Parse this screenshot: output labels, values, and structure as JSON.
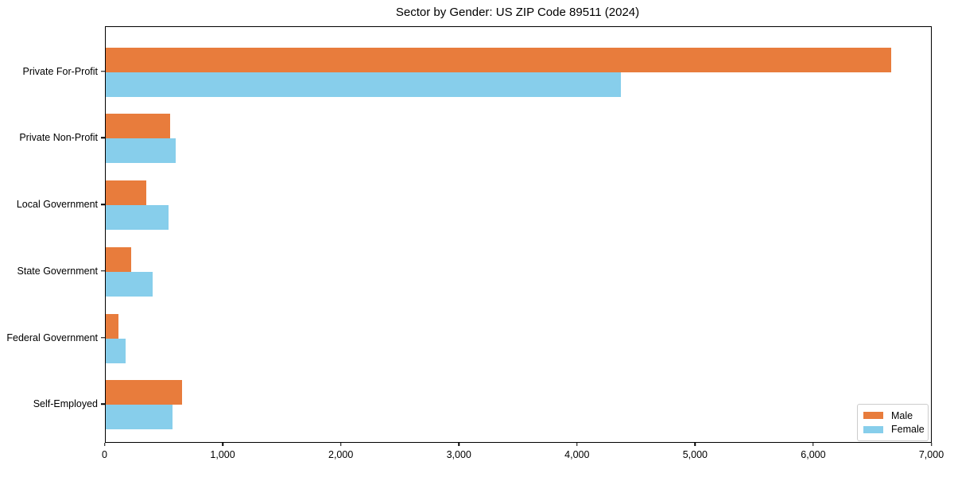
{
  "chart_data": {
    "type": "bar",
    "orientation": "horizontal",
    "title": "Sector by Gender: US ZIP Code 89511 (2024)",
    "xlabel": "",
    "ylabel": "",
    "categories": [
      "Private For-Profit",
      "Private Non-Profit",
      "Local Government",
      "State Government",
      "Federal Government",
      "Self-Employed"
    ],
    "series": [
      {
        "name": "Male",
        "color": "#e87c3c",
        "values": [
          6670,
          550,
          350,
          220,
          110,
          650
        ]
      },
      {
        "name": "Female",
        "color": "#87ceeb",
        "values": [
          4380,
          600,
          540,
          400,
          170,
          570
        ]
      }
    ],
    "xlim": [
      0,
      7000
    ],
    "xticks": [
      0,
      1000,
      2000,
      3000,
      4000,
      5000,
      6000,
      7000
    ],
    "xtick_labels": [
      "0",
      "1,000",
      "2,000",
      "3,000",
      "4,000",
      "5,000",
      "6,000",
      "7,000"
    ],
    "grid": false,
    "legend": {
      "position": "lower right",
      "entries": [
        "Male",
        "Female"
      ]
    }
  }
}
